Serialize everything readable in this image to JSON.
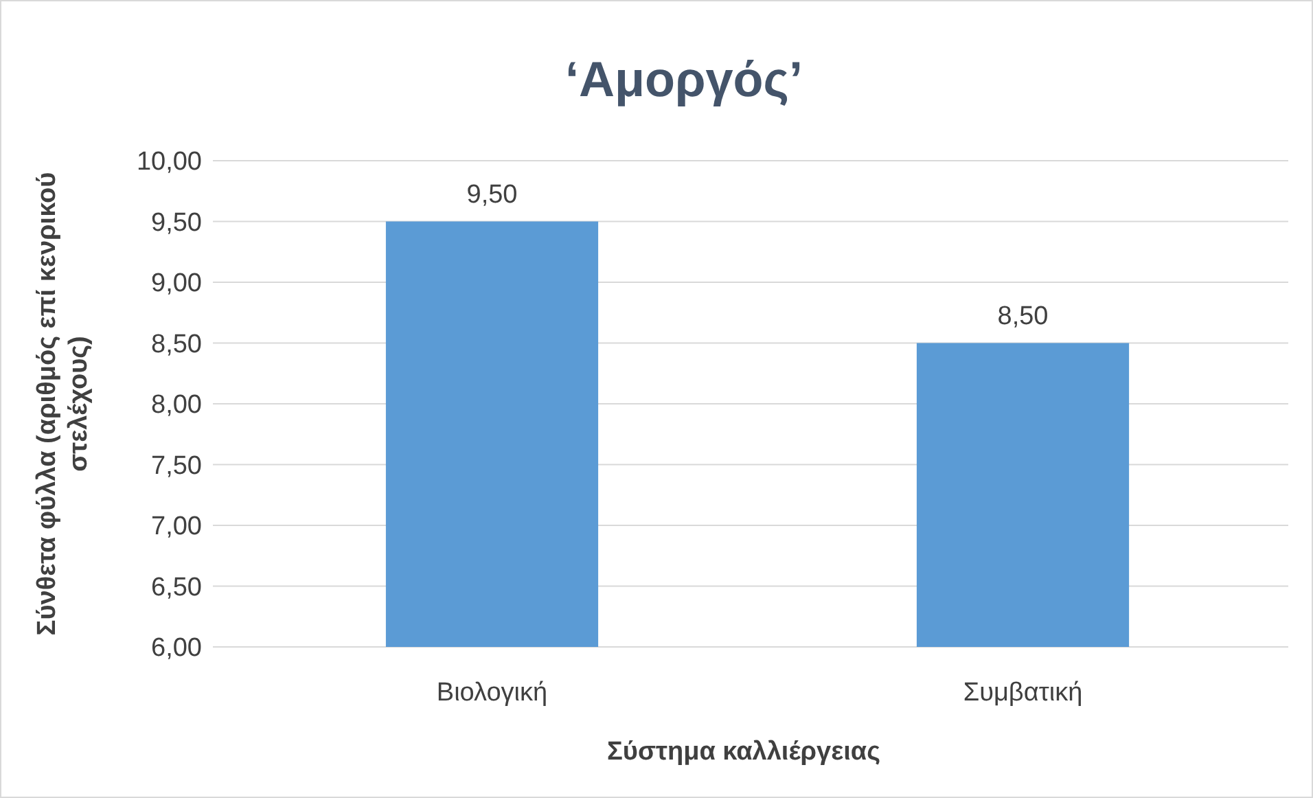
{
  "chart_data": {
    "type": "bar",
    "title": "‘Αμοργός’",
    "xlabel": "Σύστημα καλλιέργειας",
    "ylabel": "Σύνθετα φύλλα (αριθμός επί κενρικού στελέχους)",
    "categories": [
      "Βιολογική",
      "Συμβατική"
    ],
    "values": [
      9.5,
      8.5
    ],
    "value_labels": [
      "9,50",
      "8,50"
    ],
    "color": "#5b9bd5",
    "ylim": [
      6,
      10
    ],
    "yticks": [
      {
        "value": 6,
        "label": "6,00"
      },
      {
        "value": 6.5,
        "label": "6,50"
      },
      {
        "value": 7,
        "label": "7,00"
      },
      {
        "value": 7.5,
        "label": "7,50"
      },
      {
        "value": 8,
        "label": "8,00"
      },
      {
        "value": 8.5,
        "label": "8,50"
      },
      {
        "value": 9,
        "label": "9,00"
      },
      {
        "value": 9.5,
        "label": "9,50"
      },
      {
        "value": 10,
        "label": "10,00"
      }
    ],
    "grid": "y"
  }
}
